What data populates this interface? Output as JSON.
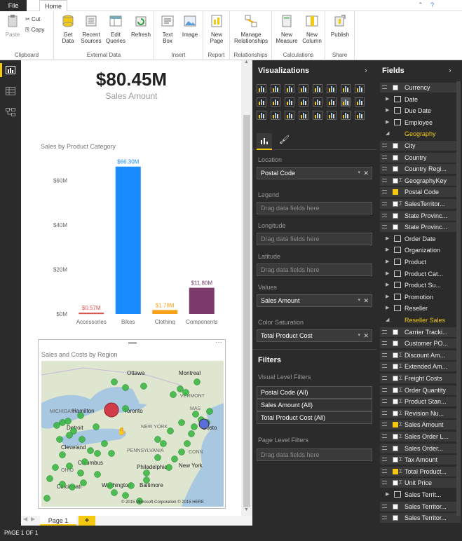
{
  "ribbon": {
    "tabs": [
      {
        "label": "File"
      },
      {
        "label": "Home"
      }
    ],
    "groups": [
      {
        "label": "Clipboard"
      },
      {
        "label": "External Data"
      },
      {
        "label": "Insert"
      },
      {
        "label": "Report"
      },
      {
        "label": "Relationships"
      },
      {
        "label": "Calculations"
      },
      {
        "label": "Share"
      }
    ],
    "buttons": {
      "paste": "Paste",
      "cut": "Cut",
      "copy": "Copy",
      "get_data_1": "Get",
      "get_data_2": "Data",
      "recent_1": "Recent",
      "recent_2": "Sources",
      "edit_1": "Edit",
      "edit_2": "Queries",
      "refresh": "Refresh",
      "textbox_1": "Text",
      "textbox_2": "Box",
      "image": "Image",
      "newpage_1": "New",
      "newpage_2": "Page",
      "managerel_1": "Manage",
      "managerel_2": "Relationships",
      "newmeasure_1": "New",
      "newmeasure_2": "Measure",
      "newcol_1": "New",
      "newcol_2": "Column",
      "publish": "Publish"
    }
  },
  "card": {
    "value": "$80.45M",
    "label": "Sales Amount"
  },
  "bar_chart_title": "Sales by Product Category",
  "map": {
    "title": "Sales and Costs by Region",
    "labels": [
      "Ottawa",
      "Montreal",
      "Hamilton",
      "Toronto",
      "VERMONT",
      "MICHIGAN",
      "Detroit",
      "NEW YORK",
      "MAS",
      "Bosto",
      "CONN",
      "Cleveland",
      "PENNSYLVANIA",
      "OHIO",
      "Columbus",
      "Philadelphia",
      "New York",
      "Cincinnati",
      "Washington",
      "Baltimore"
    ],
    "footer": "© 2015 Microsoft Corporation   © 2015 HERE"
  },
  "chart_data": {
    "type": "bar",
    "title": "Sales by Product Category",
    "categories": [
      "Accessories",
      "Bikes",
      "Clothing",
      "Components"
    ],
    "values": [
      0.57,
      66.3,
      1.78,
      11.8
    ],
    "data_labels": [
      "$0.57M",
      "$66.30M",
      "$1.78M",
      "$11.80M"
    ],
    "ytick_labels": [
      "$0M",
      "$20M",
      "$40M",
      "$60M"
    ],
    "ylim": [
      0,
      70
    ],
    "colors": [
      "#d9534f",
      "#1a8cff",
      "#f7a21b",
      "#7a3b6b"
    ],
    "grid": false
  },
  "page_tabs": {
    "tab": "Page 1",
    "add": "+"
  },
  "status": "PAGE 1 OF 1",
  "visualizations": {
    "title": "Visualizations",
    "wells": [
      {
        "label": "Location",
        "value": "Postal Code",
        "filled": true
      },
      {
        "label": "Legend",
        "value": "Drag data fields here",
        "filled": false
      },
      {
        "label": "Longitude",
        "value": "Drag data fields here",
        "filled": false
      },
      {
        "label": "Latitude",
        "value": "Drag data fields here",
        "filled": false
      },
      {
        "label": "Values",
        "value": "Sales Amount",
        "filled": true
      },
      {
        "label": "Color Saturation",
        "value": "Total Product Cost",
        "filled": true
      }
    ],
    "filters_title": "Filters",
    "visual_filters_label": "Visual Level Filters",
    "visual_filters": [
      "Postal Code (All)",
      "Sales Amount (All)",
      "Total Product Cost (All)"
    ],
    "page_filters_label": "Page Level Filters",
    "page_filters_placeholder": "Drag data fields here"
  },
  "fields": {
    "title": "Fields",
    "items": [
      {
        "kind": "field",
        "name": "Currency",
        "checked": false,
        "sigma": false
      },
      {
        "kind": "table",
        "name": "Date"
      },
      {
        "kind": "table",
        "name": "Due Date"
      },
      {
        "kind": "table",
        "name": "Employee"
      },
      {
        "kind": "expanded",
        "name": "Geography"
      },
      {
        "kind": "field",
        "name": "City",
        "checked": false,
        "sigma": false
      },
      {
        "kind": "field",
        "name": "Country",
        "checked": false,
        "sigma": false
      },
      {
        "kind": "field",
        "name": "Country Regi...",
        "checked": false,
        "sigma": false
      },
      {
        "kind": "field",
        "name": "GeographyKey",
        "checked": false,
        "sigma": true
      },
      {
        "kind": "field",
        "name": "Postal Code",
        "checked": true,
        "sigma": false
      },
      {
        "kind": "field",
        "name": "SalesTerritor...",
        "checked": false,
        "sigma": true
      },
      {
        "kind": "field",
        "name": "State Provinc...",
        "checked": false,
        "sigma": false
      },
      {
        "kind": "field",
        "name": "State Provinc...",
        "checked": false,
        "sigma": false
      },
      {
        "kind": "table",
        "name": "Order Date"
      },
      {
        "kind": "table",
        "name": "Organization"
      },
      {
        "kind": "table",
        "name": "Product"
      },
      {
        "kind": "table",
        "name": "Product Cat..."
      },
      {
        "kind": "table",
        "name": "Product Su..."
      },
      {
        "kind": "table",
        "name": "Promotion"
      },
      {
        "kind": "table",
        "name": "Reseller"
      },
      {
        "kind": "expanded",
        "name": "Reseller Sales"
      },
      {
        "kind": "field",
        "name": "Carrier Tracki...",
        "checked": false,
        "sigma": false
      },
      {
        "kind": "field",
        "name": "Customer PO...",
        "checked": false,
        "sigma": false
      },
      {
        "kind": "field",
        "name": "Discount Am...",
        "checked": false,
        "sigma": true
      },
      {
        "kind": "field",
        "name": "Extended Am...",
        "checked": false,
        "sigma": true
      },
      {
        "kind": "field",
        "name": "Freight Costs",
        "checked": false,
        "sigma": true
      },
      {
        "kind": "field",
        "name": "Order Quantity",
        "checked": false,
        "sigma": true
      },
      {
        "kind": "field",
        "name": "Product Stan...",
        "checked": false,
        "sigma": true
      },
      {
        "kind": "field",
        "name": "Revision Nu...",
        "checked": false,
        "sigma": true
      },
      {
        "kind": "field",
        "name": "Sales Amount",
        "checked": true,
        "sigma": true
      },
      {
        "kind": "field",
        "name": "Sales Order L...",
        "checked": false,
        "sigma": true
      },
      {
        "kind": "field",
        "name": "Sales Order...",
        "checked": false,
        "sigma": false
      },
      {
        "kind": "field",
        "name": "Tax Amount",
        "checked": false,
        "sigma": true
      },
      {
        "kind": "field",
        "name": "Total Product...",
        "checked": true,
        "sigma": true
      },
      {
        "kind": "field",
        "name": "Unit Price",
        "checked": false,
        "sigma": true
      },
      {
        "kind": "table",
        "name": "Sales Territ..."
      },
      {
        "kind": "field",
        "name": "Sales Territor...",
        "checked": false,
        "sigma": false
      },
      {
        "kind": "field",
        "name": "Sales Territor...",
        "checked": false,
        "sigma": false
      }
    ]
  },
  "colors": {
    "accent": "#f2c811",
    "dark_pane": "#2b2b2b",
    "bar_blue": "#1a8cff"
  }
}
